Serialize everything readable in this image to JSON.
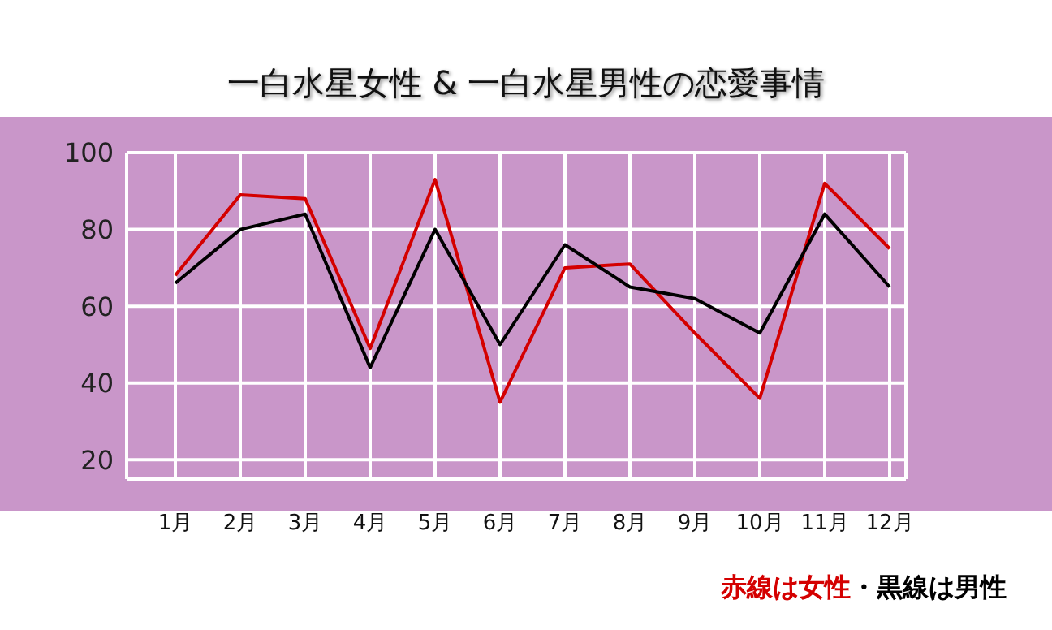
{
  "chart_data": {
    "type": "line",
    "title": "一白水星女性 & 一白水星男性の恋愛事情",
    "categories": [
      "1月",
      "2月",
      "3月",
      "4月",
      "5月",
      "6月",
      "7月",
      "8月",
      "9月",
      "10月",
      "11月",
      "12月"
    ],
    "series": [
      {
        "color": "#d40000",
        "values": [
          68,
          89,
          88,
          49,
          93,
          35,
          70,
          71,
          53,
          36,
          92,
          75
        ]
      },
      {
        "color": "#000000",
        "values": [
          66,
          80,
          84,
          44,
          80,
          50,
          76,
          65,
          62,
          53,
          84,
          65
        ]
      }
    ],
    "ylim": [
      15,
      100
    ],
    "yticks": [
      20,
      40,
      60,
      80,
      100
    ],
    "grid": true,
    "marker": "none",
    "line_style": "solid",
    "annotations": [
      "赤線は女性",
      "・黒線は男性"
    ]
  }
}
